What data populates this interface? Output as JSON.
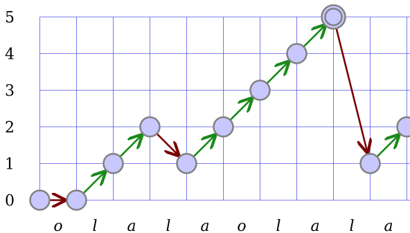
{
  "chart_data": {
    "type": "line",
    "ylim": [
      0,
      5
    ],
    "y_ticks": [
      "0",
      "1",
      "2",
      "3",
      "4",
      "5"
    ],
    "x_labels": [
      "o",
      "l",
      "a",
      "l",
      "a",
      "o",
      "l",
      "a",
      "l",
      "a"
    ],
    "path_heights": [
      0,
      0,
      1,
      2,
      1,
      2,
      3,
      4,
      5,
      1,
      2
    ],
    "highlighted_node_index": 8,
    "grid": true
  },
  "colors": {
    "grid": "#3a3ae6",
    "node_fill": "#c8c8ff",
    "node_stroke": "#808080",
    "up_step": "#1a8a1a",
    "down_or_flat_step": "#7a0000"
  }
}
